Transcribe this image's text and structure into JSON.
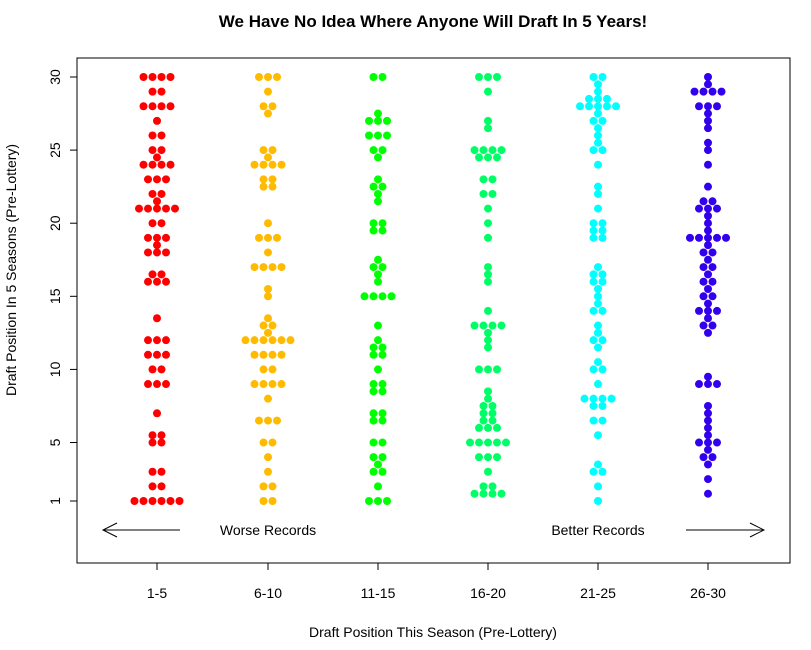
{
  "chart_data": {
    "type": "scatter",
    "subtype": "beeswarm",
    "title": "We Have No Idea Where Anyone Will Draft In 5 Years!",
    "xlabel": "Draft Position This Season (Pre-Lottery)",
    "ylabel": "Draft Position In 5 Seasons (Pre-Lottery)",
    "ylim": [
      1,
      30
    ],
    "yticks": [
      "1",
      "5",
      "10",
      "15",
      "20",
      "25",
      "30"
    ],
    "categories": [
      "1-5",
      "6-10",
      "11-15",
      "16-20",
      "21-25",
      "26-30"
    ],
    "annotations": {
      "left": "Worse Records",
      "right": "Better Records"
    },
    "grid": false,
    "series": [
      {
        "category": "1-5",
        "color": "#ff0000",
        "values": [
          1,
          1,
          1,
          1,
          1,
          1,
          2,
          2,
          3,
          3,
          5,
          5,
          5.5,
          5.5,
          7,
          9,
          9,
          9,
          10,
          10,
          11,
          11,
          11,
          12,
          12,
          12,
          13.5,
          16,
          16,
          16,
          16.5,
          16.5,
          18,
          18,
          18,
          18.5,
          19,
          19,
          19,
          20,
          20,
          21,
          21,
          21,
          21,
          21,
          21.5,
          22,
          22,
          23,
          23,
          23,
          24,
          24,
          24,
          24,
          24.5,
          25,
          25,
          26,
          26,
          27,
          28,
          28,
          28,
          28,
          29,
          29,
          30,
          30,
          30,
          30
        ]
      },
      {
        "category": "6-10",
        "color": "#ffbb00",
        "values": [
          1,
          1,
          2,
          2,
          3,
          4,
          5,
          5,
          6.5,
          6.5,
          6.5,
          8,
          9,
          9,
          9,
          9,
          10,
          10,
          11,
          11,
          11,
          11,
          12,
          12,
          12,
          12,
          12,
          12,
          12.5,
          13,
          13,
          13.5,
          15,
          15.5,
          17,
          17,
          17,
          17,
          18,
          19,
          19,
          19,
          20,
          22.5,
          22.5,
          23,
          23,
          24,
          24,
          24,
          24,
          24.5,
          25,
          25,
          27.5,
          28,
          28,
          29,
          30,
          30,
          30
        ]
      },
      {
        "category": "11-15",
        "color": "#00ff00",
        "values": [
          1,
          1,
          1,
          2,
          3,
          3,
          3.5,
          4,
          4,
          5,
          5,
          6.5,
          6.5,
          7,
          7,
          8.5,
          8.5,
          9,
          9,
          10,
          11,
          11,
          11.5,
          11.5,
          12,
          13,
          15,
          15,
          15,
          15,
          16,
          16.5,
          17,
          17,
          17.5,
          19.5,
          19.5,
          20,
          20,
          21.5,
          22,
          22.5,
          22.5,
          23,
          24.5,
          25,
          25,
          26,
          26,
          26,
          27,
          27,
          27,
          27.5,
          30,
          30
        ]
      },
      {
        "category": "16-20",
        "color": "#00ff66",
        "values": [
          1.5,
          1.5,
          1.5,
          1.5,
          2,
          2,
          3,
          4,
          4,
          4,
          5,
          5,
          5,
          5,
          5,
          6,
          6,
          6,
          6.5,
          6.5,
          7,
          7,
          7.5,
          7.5,
          8,
          8.5,
          10,
          10,
          10,
          11.5,
          12,
          12.5,
          13,
          13,
          13,
          13,
          14,
          16,
          16.5,
          17,
          19,
          20,
          21,
          22,
          22,
          23,
          23,
          24.5,
          24.5,
          24.5,
          25,
          25,
          25,
          25,
          26.5,
          27,
          29,
          30,
          30,
          30
        ]
      },
      {
        "category": "21-25",
        "color": "#00ffff",
        "values": [
          1,
          2,
          3,
          3,
          3.5,
          5.5,
          6.5,
          6.5,
          7.5,
          7.5,
          8,
          8,
          8,
          8,
          9,
          10,
          10,
          10.5,
          11.5,
          12,
          12,
          12.5,
          13,
          14,
          14,
          14.5,
          15,
          15.5,
          16,
          16,
          16.5,
          16.5,
          17,
          19,
          19,
          19.5,
          19.5,
          20,
          20,
          21,
          22,
          22.5,
          24,
          25,
          25,
          25.5,
          26,
          26.5,
          27,
          27,
          27.5,
          28,
          28,
          28,
          28,
          28,
          28.5,
          28.5,
          28.5,
          29,
          29.5,
          30,
          30
        ]
      },
      {
        "category": "26-30",
        "color": "#3300ee",
        "values": [
          1.5,
          2.5,
          3.5,
          4,
          4,
          4.5,
          5,
          5,
          5,
          5.5,
          6,
          6.5,
          7,
          7.5,
          9,
          9,
          9,
          9.5,
          12.5,
          13,
          13,
          13.5,
          14,
          14,
          14,
          14.5,
          15,
          15,
          15.5,
          16,
          16,
          16.5,
          17,
          17,
          17.5,
          18,
          18,
          18.5,
          19,
          19,
          19,
          19,
          19,
          19.5,
          20,
          20.5,
          21,
          21,
          21,
          21.5,
          21.5,
          22.5,
          24,
          25,
          25.5,
          26.5,
          27,
          27.5,
          28,
          28,
          28,
          29,
          29,
          29,
          29,
          29.5,
          30
        ]
      }
    ]
  }
}
